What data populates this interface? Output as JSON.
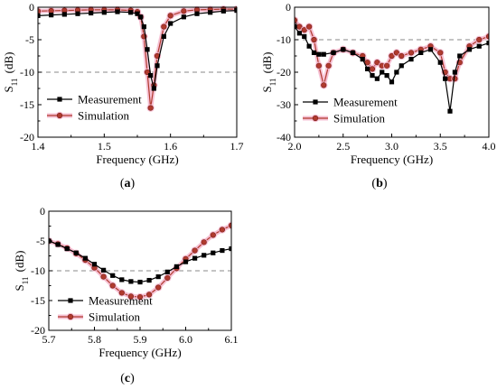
{
  "chart_data": [
    {
      "type": "line",
      "panel_label": "(a)",
      "xlabel": "Frequency (GHz)",
      "ylabel_base": "S",
      "ylabel_sub": "11",
      "ylabel_unit": "(dB)",
      "xlim": [
        1.4,
        1.7
      ],
      "ylim": [
        -20,
        0
      ],
      "xticks": [
        "1.4",
        "1.5",
        "1.6",
        "1.7"
      ],
      "yticks": [
        "0",
        "-5",
        "-10",
        "-15",
        "-20"
      ],
      "reference_line": -10,
      "legend_position": "bottom-left",
      "grid": false,
      "series": [
        {
          "name": "Measurement",
          "color": "#000000",
          "marker": "square",
          "x": [
            1.4,
            1.42,
            1.44,
            1.46,
            1.48,
            1.5,
            1.52,
            1.54,
            1.55,
            1.555,
            1.56,
            1.565,
            1.57,
            1.575,
            1.58,
            1.59,
            1.6,
            1.62,
            1.64,
            1.66,
            1.68,
            1.7
          ],
          "y": [
            -1.3,
            -1.2,
            -1.1,
            -1.0,
            -0.9,
            -0.8,
            -0.7,
            -0.8,
            -1.0,
            -1.5,
            -3.0,
            -6.5,
            -10.5,
            -12.5,
            -9.0,
            -4.5,
            -2.5,
            -1.5,
            -1.0,
            -0.8,
            -0.6,
            -0.5
          ]
        },
        {
          "name": "Simulation",
          "color": "#b03a2e",
          "marker": "circle",
          "x": [
            1.4,
            1.42,
            1.44,
            1.46,
            1.48,
            1.5,
            1.52,
            1.54,
            1.55,
            1.555,
            1.56,
            1.565,
            1.57,
            1.575,
            1.58,
            1.59,
            1.6,
            1.62,
            1.64,
            1.66,
            1.68,
            1.7
          ],
          "y": [
            -0.6,
            -0.55,
            -0.5,
            -0.45,
            -0.4,
            -0.4,
            -0.4,
            -0.5,
            -0.7,
            -1.5,
            -4.5,
            -10.0,
            -15.5,
            -12.0,
            -7.5,
            -3.0,
            -1.3,
            -0.6,
            -0.4,
            -0.35,
            -0.3,
            -0.3
          ]
        }
      ]
    },
    {
      "type": "line",
      "panel_label": "(b)",
      "xlabel": "Frequency (GHz)",
      "ylabel_base": "S",
      "ylabel_sub": "11",
      "ylabel_unit": "(dB)",
      "xlim": [
        2.0,
        4.0
      ],
      "ylim": [
        -40,
        0
      ],
      "xticks": [
        "2.0",
        "2.5",
        "3.0",
        "3.5",
        "4.0"
      ],
      "yticks": [
        "0",
        "-10",
        "-20",
        "-30",
        "-40"
      ],
      "reference_line": -10,
      "legend_position": "bottom-left",
      "grid": false,
      "series": [
        {
          "name": "Measurement",
          "color": "#000000",
          "marker": "square",
          "x": [
            2.0,
            2.05,
            2.1,
            2.15,
            2.2,
            2.25,
            2.3,
            2.4,
            2.5,
            2.6,
            2.7,
            2.75,
            2.8,
            2.85,
            2.9,
            2.95,
            3.0,
            3.05,
            3.1,
            3.2,
            3.3,
            3.4,
            3.5,
            3.55,
            3.6,
            3.65,
            3.7,
            3.8,
            3.9,
            4.0
          ],
          "y": [
            -6,
            -8,
            -9,
            -12,
            -14,
            -14.5,
            -14.5,
            -14,
            -13,
            -14,
            -16,
            -19,
            -21,
            -22,
            -20,
            -21,
            -23,
            -20,
            -18,
            -16,
            -14,
            -13,
            -17,
            -22,
            -32,
            -20,
            -15,
            -13,
            -12,
            -11
          ]
        },
        {
          "name": "Simulation",
          "color": "#b03a2e",
          "marker": "circle",
          "x": [
            2.0,
            2.05,
            2.1,
            2.15,
            2.2,
            2.25,
            2.3,
            2.35,
            2.4,
            2.5,
            2.6,
            2.7,
            2.75,
            2.8,
            2.85,
            2.9,
            2.95,
            3.0,
            3.05,
            3.1,
            3.2,
            3.3,
            3.4,
            3.5,
            3.55,
            3.6,
            3.65,
            3.7,
            3.8,
            3.9,
            4.0
          ],
          "y": [
            -4,
            -6,
            -7,
            -6,
            -10,
            -18,
            -24,
            -18,
            -14,
            -13,
            -14,
            -15,
            -17,
            -19,
            -17,
            -18,
            -18,
            -15,
            -14,
            -15,
            -14,
            -13,
            -12,
            -14,
            -20,
            -22,
            -22,
            -17,
            -12,
            -10,
            -9
          ]
        }
      ]
    },
    {
      "type": "line",
      "panel_label": "(c)",
      "xlabel": "Frequency (GHz)",
      "ylabel_base": "S",
      "ylabel_sub": "11",
      "ylabel_unit": "(dB)",
      "xlim": [
        5.7,
        6.1
      ],
      "ylim": [
        -20,
        0
      ],
      "xticks": [
        "5.7",
        "5.8",
        "5.9",
        "6.0",
        "6.1"
      ],
      "yticks": [
        "0",
        "-5",
        "-10",
        "-15",
        "-20"
      ],
      "reference_line": -10,
      "legend_position": "bottom-left",
      "grid": false,
      "series": [
        {
          "name": "Measurement",
          "color": "#000000",
          "marker": "square",
          "x": [
            5.7,
            5.72,
            5.74,
            5.76,
            5.78,
            5.8,
            5.82,
            5.84,
            5.86,
            5.88,
            5.9,
            5.92,
            5.94,
            5.96,
            5.98,
            6.0,
            6.02,
            6.04,
            6.06,
            6.08,
            6.1
          ],
          "y": [
            -5.0,
            -5.6,
            -6.3,
            -7.0,
            -7.9,
            -8.9,
            -9.9,
            -10.8,
            -11.5,
            -11.8,
            -11.9,
            -11.6,
            -11.0,
            -10.2,
            -9.3,
            -8.5,
            -7.9,
            -7.4,
            -7.0,
            -6.6,
            -6.3
          ]
        },
        {
          "name": "Simulation",
          "color": "#b03a2e",
          "marker": "circle",
          "x": [
            5.7,
            5.72,
            5.74,
            5.76,
            5.78,
            5.8,
            5.82,
            5.84,
            5.86,
            5.88,
            5.9,
            5.92,
            5.94,
            5.96,
            5.98,
            6.0,
            6.02,
            6.04,
            6.06,
            6.08,
            6.1
          ],
          "y": [
            -5.0,
            -5.5,
            -6.2,
            -7.1,
            -8.2,
            -9.5,
            -11.0,
            -12.5,
            -13.7,
            -14.3,
            -14.4,
            -14.0,
            -12.8,
            -11.2,
            -9.6,
            -8.0,
            -6.6,
            -5.2,
            -4.0,
            -3.1,
            -2.4
          ]
        }
      ]
    }
  ]
}
